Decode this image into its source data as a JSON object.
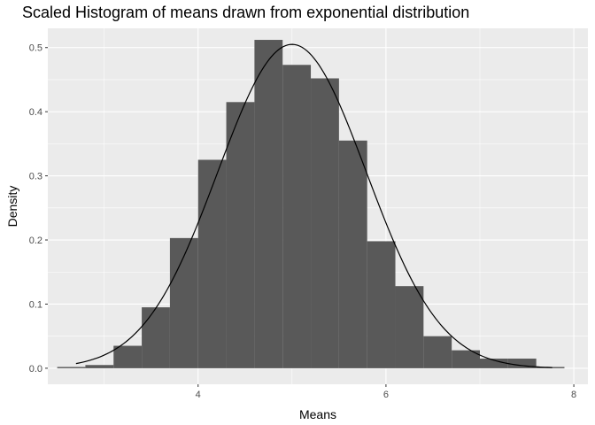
{
  "chart_data": {
    "type": "bar",
    "title": "Scaled Histogram of means drawn from exponential distribution",
    "xlabel": "Means",
    "ylabel": "Density",
    "xlim": [
      2.4,
      8.15
    ],
    "ylim": [
      -0.025,
      0.53
    ],
    "x_ticks": [
      4,
      6,
      8
    ],
    "x_tick_labels": [
      "4",
      "6",
      "8"
    ],
    "y_ticks": [
      0,
      0.1,
      0.2,
      0.3,
      0.4,
      0.5
    ],
    "y_tick_labels": [
      "0.0",
      "0.1",
      "0.2",
      "0.3",
      "0.4",
      "0.5"
    ],
    "bin_width": 0.3,
    "bins": [
      {
        "x0": 2.5,
        "x1": 2.8,
        "density": 0.002
      },
      {
        "x0": 2.8,
        "x1": 3.1,
        "density": 0.005
      },
      {
        "x0": 3.1,
        "x1": 3.4,
        "density": 0.035
      },
      {
        "x0": 3.4,
        "x1": 3.7,
        "density": 0.095
      },
      {
        "x0": 3.7,
        "x1": 4.0,
        "density": 0.203
      },
      {
        "x0": 4.0,
        "x1": 4.3,
        "density": 0.325
      },
      {
        "x0": 4.3,
        "x1": 4.6,
        "density": 0.415
      },
      {
        "x0": 4.6,
        "x1": 4.9,
        "density": 0.512
      },
      {
        "x0": 4.9,
        "x1": 5.2,
        "density": 0.473
      },
      {
        "x0": 5.2,
        "x1": 5.5,
        "density": 0.452
      },
      {
        "x0": 5.5,
        "x1": 5.8,
        "density": 0.355
      },
      {
        "x0": 5.8,
        "x1": 6.1,
        "density": 0.198
      },
      {
        "x0": 6.1,
        "x1": 6.4,
        "density": 0.128
      },
      {
        "x0": 6.4,
        "x1": 6.7,
        "density": 0.05
      },
      {
        "x0": 6.7,
        "x1": 7.0,
        "density": 0.028
      },
      {
        "x0": 7.0,
        "x1": 7.3,
        "density": 0.015
      },
      {
        "x0": 7.3,
        "x1": 7.6,
        "density": 0.015
      },
      {
        "x0": 7.6,
        "x1": 7.9,
        "density": 0.002
      }
    ],
    "density_curve": {
      "type": "normal",
      "mean": 5.0,
      "sd": 0.79,
      "x_range": [
        2.7,
        7.77
      ]
    },
    "grid": true,
    "legend": "none",
    "colors": {
      "panel_background": "#ebebeb",
      "grid_line": "#ffffff",
      "bar_fill": "#595959",
      "curve": "#000000"
    }
  }
}
